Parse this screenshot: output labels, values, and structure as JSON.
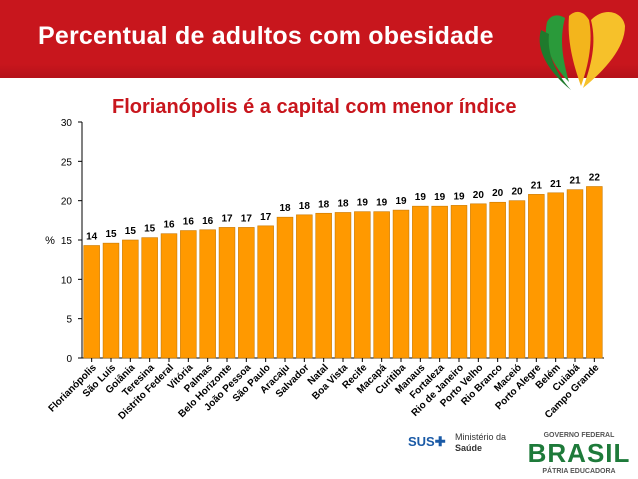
{
  "header": {
    "title": "Percentual de adultos com obesidade"
  },
  "subtitle": "Florianópolis é a capital com menor índice",
  "footer": {
    "sus": "SUS",
    "ministerio_line1": "Ministério da",
    "ministerio_line2": "Saúde",
    "governo": "GOVERNO FEDERAL",
    "brasil": "BRASIL",
    "patria": "PÁTRIA EDUCADORA"
  },
  "colors": {
    "title_bar": "#c8161d",
    "bar_fill": "#ff9900",
    "bar_stroke": "#c97800",
    "subtitle": "#c8161d"
  },
  "chart_data": {
    "type": "bar",
    "title": "",
    "xlabel": "",
    "ylabel": "%",
    "ylim": [
      0,
      30
    ],
    "yticks": [
      0,
      5,
      10,
      15,
      20,
      25,
      30
    ],
    "grid": false,
    "categories": [
      "Florianópolis",
      "São Luís",
      "Goiânia",
      "Teresina",
      "Distrito Federal",
      "Vitória",
      "Palmas",
      "Belo Horizonte",
      "João Pessoa",
      "São Paulo",
      "Aracaju",
      "Salvador",
      "Natal",
      "Boa Vista",
      "Recife",
      "Macapá",
      "Curitiba",
      "Manaus",
      "Fortaleza",
      "Rio de Janeiro",
      "Porto Velho",
      "Rio Branco",
      "Maceió",
      "Porto Alegre",
      "Belém",
      "Cuiabá",
      "Campo Grande"
    ],
    "values": [
      14.3,
      14.6,
      15.0,
      15.3,
      15.8,
      16.2,
      16.3,
      16.6,
      16.6,
      16.8,
      17.9,
      18.2,
      18.4,
      18.5,
      18.6,
      18.6,
      18.8,
      19.3,
      19.3,
      19.4,
      19.6,
      19.8,
      20.0,
      20.8,
      21.0,
      21.4,
      21.8
    ],
    "data_labels": [
      "14",
      "15",
      "15",
      "15",
      "16",
      "16",
      "16",
      "17",
      "17",
      "17",
      "18",
      "18",
      "18",
      "18",
      "19",
      "19",
      "19",
      "19",
      "19",
      "19",
      "20",
      "20",
      "20",
      "21",
      "21",
      "21",
      "22"
    ]
  }
}
